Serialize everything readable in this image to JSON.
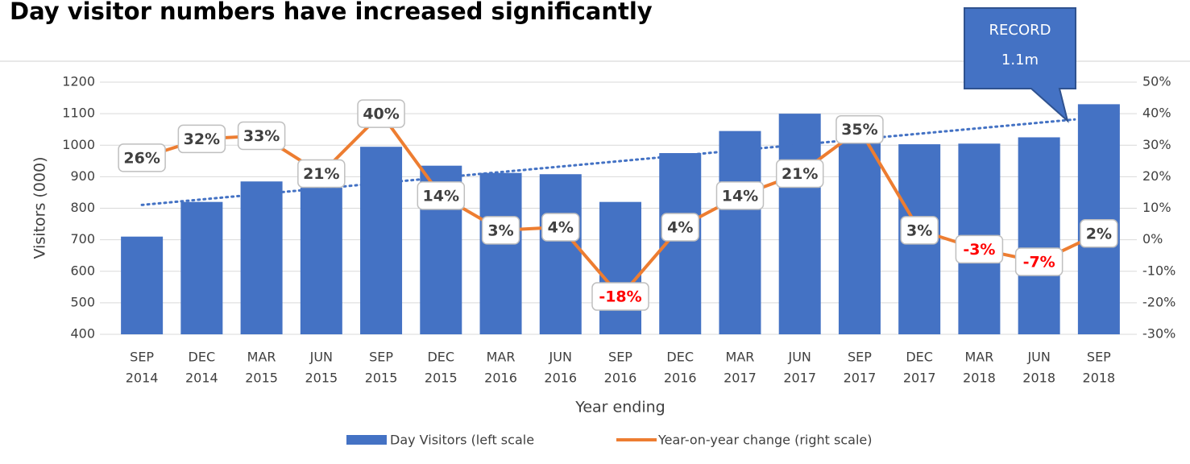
{
  "chart_data": {
    "type": "bar-line",
    "title": "Day visitor numbers have increased significantly",
    "ylabel": "Visitors (000)",
    "xlabel": "Year ending",
    "annotation": [
      "RECORD",
      "1.1m"
    ],
    "categories": [
      [
        "SEP",
        "2014"
      ],
      [
        "DEC",
        "2014"
      ],
      [
        "MAR",
        "2015"
      ],
      [
        "JUN",
        "2015"
      ],
      [
        "SEP",
        "2015"
      ],
      [
        "DEC",
        "2015"
      ],
      [
        "MAR",
        "2016"
      ],
      [
        "JUN",
        "2016"
      ],
      [
        "SEP",
        "2016"
      ],
      [
        "DEC",
        "2016"
      ],
      [
        "MAR",
        "2017"
      ],
      [
        "JUN",
        "2017"
      ],
      [
        "SEP",
        "2017"
      ],
      [
        "DEC",
        "2017"
      ],
      [
        "MAR",
        "2018"
      ],
      [
        "JUN",
        "2018"
      ],
      [
        "SEP",
        "2018"
      ]
    ],
    "series": [
      {
        "name": "Day Visitors (left scale",
        "type": "bar",
        "color": "#4472c4",
        "values": [
          710,
          820,
          885,
          865,
          995,
          935,
          912,
          908,
          820,
          975,
          1045,
          1100,
          1010,
          1003,
          1005,
          1025,
          1130
        ]
      },
      {
        "name": "Year-on-year change (right scale)",
        "type": "line",
        "axis": "y2",
        "color": "#ed7d31",
        "values": [
          26,
          32,
          33,
          21,
          40,
          14,
          3,
          4,
          -18,
          4,
          14,
          21,
          35,
          3,
          -3,
          -7,
          2
        ],
        "value_labels": [
          "26%",
          "32%",
          "33%",
          "21%",
          "40%",
          "14%",
          "3%",
          "4%",
          "-18%",
          "4%",
          "14%",
          "21%",
          "35%",
          "3%",
          "-3%",
          "-7%",
          "2%"
        ]
      }
    ],
    "ylim": [
      400,
      1200
    ],
    "yticks": [
      400,
      500,
      600,
      700,
      800,
      900,
      1000,
      1100,
      1200
    ],
    "y2lim": [
      -30,
      50
    ],
    "y2ticks": [
      {
        "value": -30,
        "label": "-30%"
      },
      {
        "value": -20,
        "label": "-20%"
      },
      {
        "value": -10,
        "label": "-10%"
      },
      {
        "value": 0,
        "label": "0%"
      },
      {
        "value": 10,
        "label": "10%"
      },
      {
        "value": 20,
        "label": "20%"
      },
      {
        "value": 30,
        "label": "30%"
      },
      {
        "value": 40,
        "label": "40%"
      },
      {
        "value": 50,
        "label": "50%"
      }
    ],
    "grid": true,
    "trendline": true,
    "negative_label_color": "#ff0000"
  }
}
